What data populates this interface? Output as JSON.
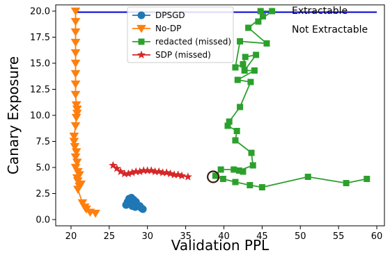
{
  "chart_data": {
    "type": "line",
    "title": "",
    "xlabel": "Validation PPL",
    "ylabel": "Canary Exposure",
    "xlim": [
      18,
      61
    ],
    "ylim": [
      -0.6,
      20.6
    ],
    "xticks": [
      20,
      25,
      30,
      35,
      40,
      45,
      50,
      55,
      60
    ],
    "yticks": [
      0.0,
      2.5,
      5.0,
      7.5,
      10.0,
      12.5,
      15.0,
      17.5,
      20.0
    ],
    "xtick_labels": [
      "20",
      "25",
      "30",
      "35",
      "40",
      "45",
      "50",
      "55",
      "60"
    ],
    "ytick_labels": [
      "0.0",
      "2.5",
      "5.0",
      "7.5",
      "10.0",
      "12.5",
      "15.0",
      "17.5",
      "20.0"
    ],
    "grid": false,
    "legend_position": "top-center",
    "threshold": {
      "y": 19.9,
      "x_start": 20.5,
      "x_end": 60,
      "color": "#0000cc"
    },
    "annotations": {
      "above": "Extractable",
      "below": "Not Extractable"
    },
    "highlight": {
      "x": 38.6,
      "y": 4.1,
      "color": "#3b1a0e"
    },
    "series": [
      {
        "name": "DPSGD",
        "color": "#1f77b4",
        "marker": "circle",
        "points": [
          [
            27.2,
            1.4
          ],
          [
            27.4,
            1.7
          ],
          [
            27.6,
            2.0
          ],
          [
            27.9,
            2.1
          ],
          [
            28.2,
            1.9
          ],
          [
            28.5,
            1.7
          ],
          [
            28.3,
            1.5
          ],
          [
            28.0,
            1.3
          ],
          [
            28.4,
            1.2
          ],
          [
            28.7,
            1.4
          ],
          [
            29.0,
            1.3
          ],
          [
            29.2,
            1.1
          ],
          [
            29.4,
            1.0
          ]
        ]
      },
      {
        "name": "No-DP",
        "color": "#ff7f0e",
        "marker": "triangle-down",
        "points": [
          [
            20.6,
            20.0
          ],
          [
            20.6,
            19.0
          ],
          [
            20.6,
            18.0
          ],
          [
            20.6,
            17.0
          ],
          [
            20.6,
            16.0
          ],
          [
            20.6,
            15.0
          ],
          [
            20.6,
            14.0
          ],
          [
            20.6,
            13.0
          ],
          [
            20.6,
            12.0
          ],
          [
            20.7,
            11.0
          ],
          [
            20.8,
            10.6
          ],
          [
            20.8,
            10.2
          ],
          [
            20.7,
            9.8
          ],
          [
            20.6,
            9.0
          ],
          [
            20.4,
            8.0
          ],
          [
            20.4,
            7.5
          ],
          [
            20.5,
            7.0
          ],
          [
            20.7,
            6.5
          ],
          [
            20.6,
            6.0
          ],
          [
            20.8,
            5.5
          ],
          [
            20.6,
            5.0
          ],
          [
            20.9,
            4.6
          ],
          [
            21.1,
            4.3
          ],
          [
            20.8,
            4.0
          ],
          [
            20.9,
            3.7
          ],
          [
            21.3,
            3.4
          ],
          [
            21.1,
            3.2
          ],
          [
            20.9,
            2.9
          ],
          [
            21.5,
            1.6
          ],
          [
            21.8,
            1.2
          ],
          [
            22.0,
            1.0
          ],
          [
            22.5,
            0.7
          ],
          [
            23.2,
            0.6
          ]
        ]
      },
      {
        "name": "redacted (missed)",
        "color": "#2ca02c",
        "marker": "square",
        "points": [
          [
            44.8,
            20.0
          ],
          [
            46.3,
            20.0
          ],
          [
            44.5,
            19.0
          ],
          [
            45.1,
            19.5
          ],
          [
            43.2,
            18.4
          ],
          [
            45.6,
            16.9
          ],
          [
            42.1,
            17.1
          ],
          [
            41.5,
            14.6
          ],
          [
            42.5,
            14.9
          ],
          [
            42.8,
            15.6
          ],
          [
            44.2,
            15.8
          ],
          [
            42.7,
            14.3
          ],
          [
            44.0,
            14.3
          ],
          [
            41.8,
            13.4
          ],
          [
            43.5,
            13.2
          ],
          [
            42.1,
            10.8
          ],
          [
            40.7,
            9.4
          ],
          [
            40.5,
            9.0
          ],
          [
            41.7,
            8.5
          ],
          [
            41.5,
            7.6
          ],
          [
            43.6,
            6.4
          ],
          [
            43.8,
            5.2
          ],
          [
            42.0,
            4.7
          ],
          [
            42.5,
            4.6
          ],
          [
            41.3,
            4.8
          ],
          [
            39.6,
            4.8
          ],
          [
            38.9,
            4.2
          ],
          [
            39.9,
            3.9
          ],
          [
            41.5,
            3.6
          ],
          [
            43.4,
            3.3
          ],
          [
            45.0,
            3.1
          ],
          [
            51.0,
            4.1
          ],
          [
            56.0,
            3.5
          ],
          [
            58.7,
            3.9
          ]
        ]
      },
      {
        "name": "SDP (missed)",
        "color": "#d62728",
        "marker": "star",
        "points": [
          [
            25.5,
            5.2
          ],
          [
            26.0,
            4.9
          ],
          [
            26.5,
            4.6
          ],
          [
            27.0,
            4.4
          ],
          [
            27.5,
            4.4
          ],
          [
            28.0,
            4.5
          ],
          [
            28.5,
            4.6
          ],
          [
            29.0,
            4.6
          ],
          [
            29.5,
            4.7
          ],
          [
            30.0,
            4.7
          ],
          [
            30.5,
            4.7
          ],
          [
            31.0,
            4.6
          ],
          [
            31.5,
            4.6
          ],
          [
            32.0,
            4.5
          ],
          [
            32.5,
            4.5
          ],
          [
            33.0,
            4.4
          ],
          [
            33.5,
            4.3
          ],
          [
            34.0,
            4.3
          ],
          [
            34.5,
            4.2
          ],
          [
            35.3,
            4.1
          ]
        ]
      }
    ]
  }
}
